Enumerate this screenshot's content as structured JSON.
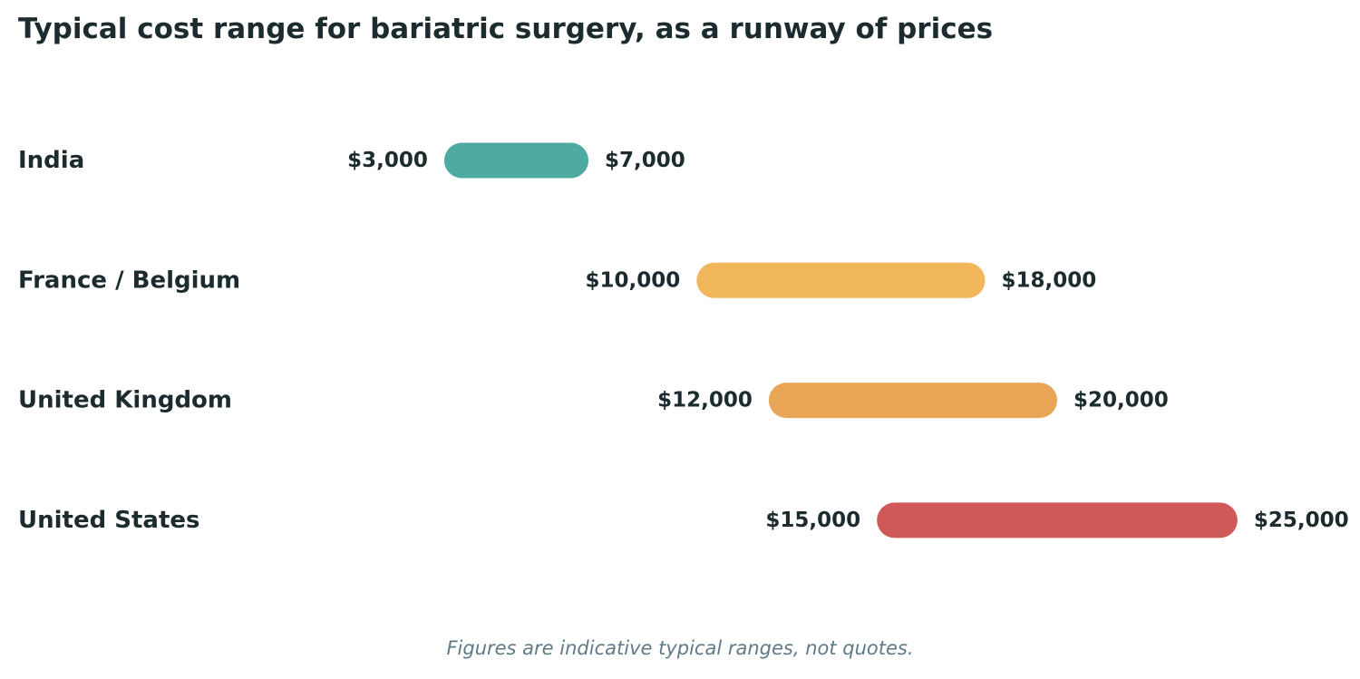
{
  "chart_data": {
    "type": "bar",
    "subtype": "range",
    "title": "Typical cost range for bariatric surgery, as a runway of prices",
    "categories": [
      "India",
      "France / Belgium",
      "United Kingdom",
      "United States"
    ],
    "ranges": [
      {
        "category": "India",
        "low": 3000,
        "high": 7000,
        "low_label": "$3,000",
        "high_label": "$7,000",
        "color": "#4daaa0"
      },
      {
        "category": "France / Belgium",
        "low": 10000,
        "high": 18000,
        "low_label": "$10,000",
        "high_label": "$18,000",
        "color": "#f2b65a"
      },
      {
        "category": "United Kingdom",
        "low": 12000,
        "high": 20000,
        "low_label": "$12,000",
        "high_label": "$20,000",
        "color": "#eaa657"
      },
      {
        "category": "United States",
        "low": 15000,
        "high": 25000,
        "low_label": "$15,000",
        "high_label": "$25,000",
        "color": "#cf5858"
      }
    ],
    "xlim": [
      -8000,
      26500
    ],
    "grid": false,
    "footnote": "Figures are indicative typical ranges, not quotes."
  }
}
